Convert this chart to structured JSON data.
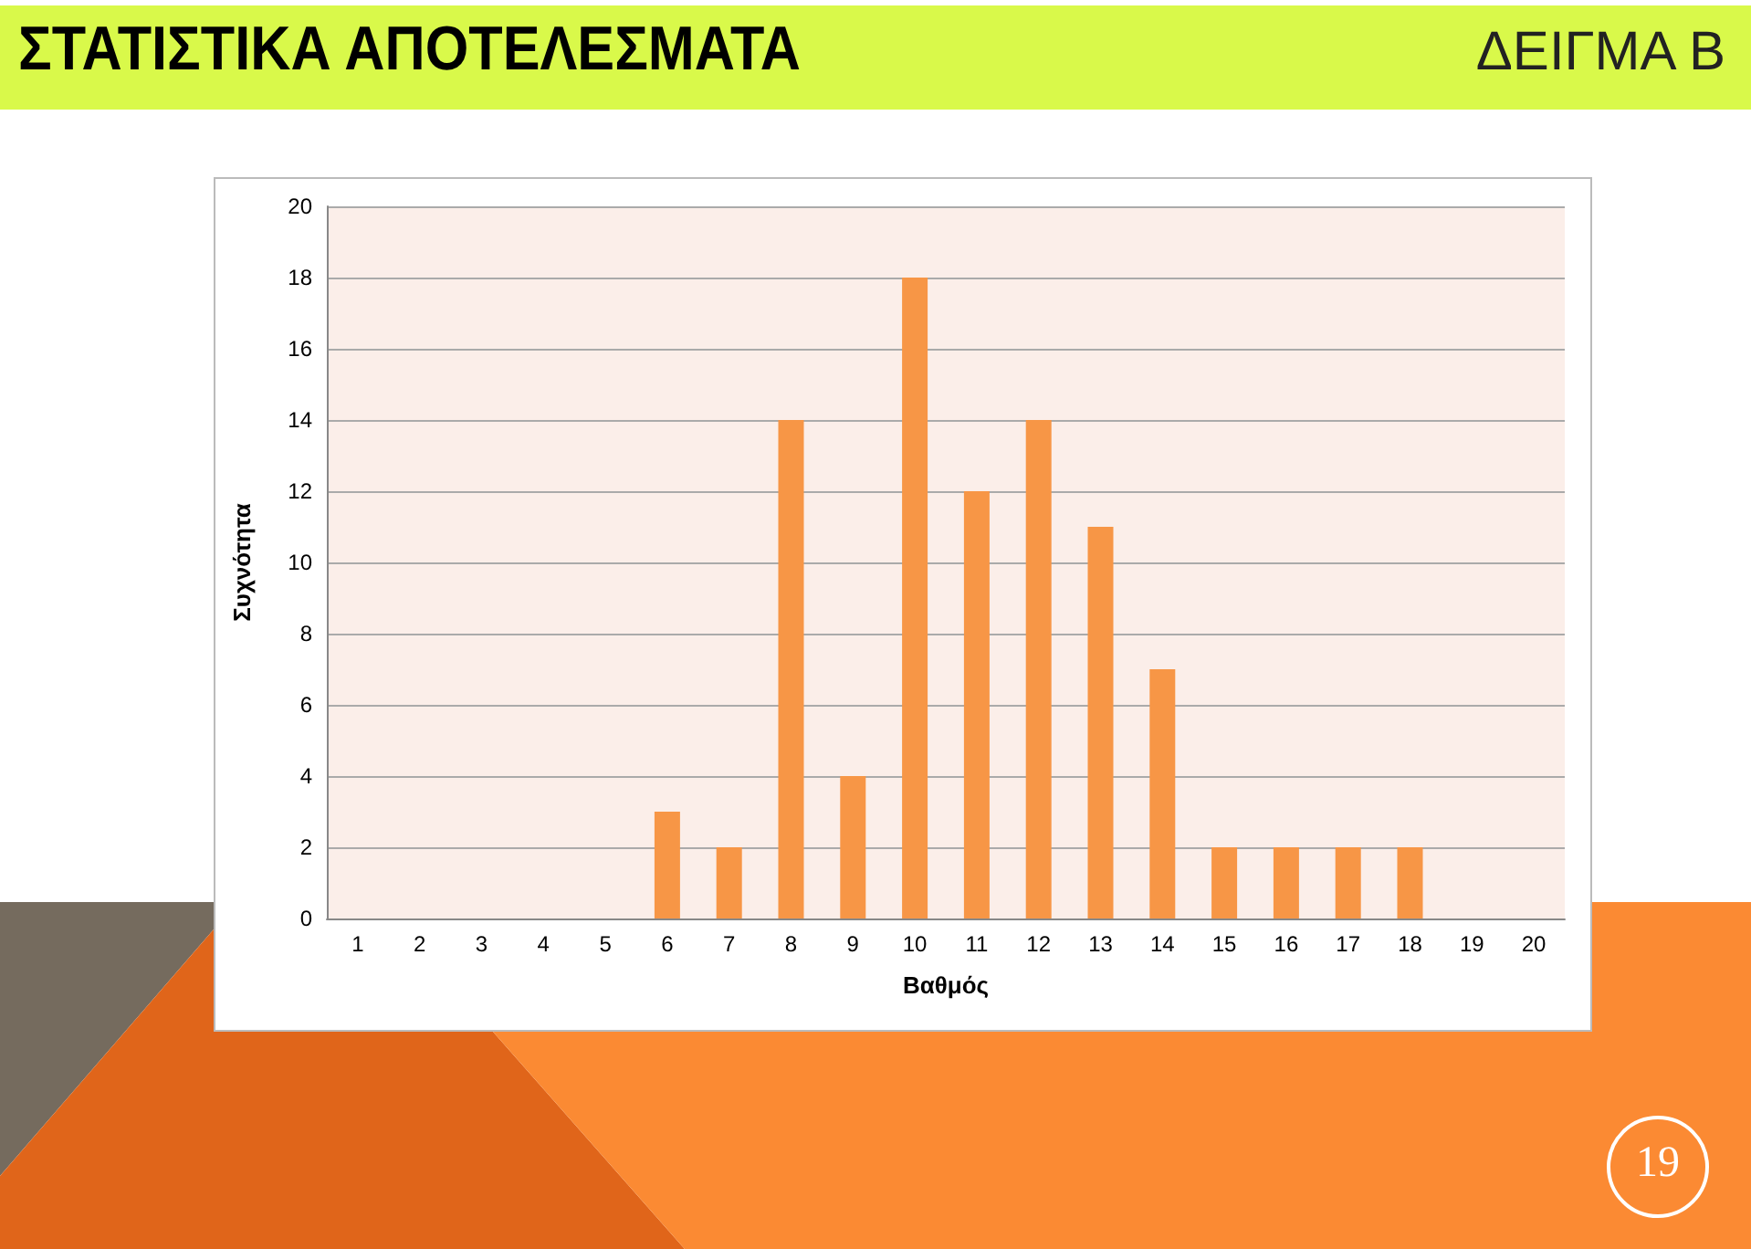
{
  "chart_data": {
    "type": "bar",
    "title": "ΣΤΑΤΙΣΤΙΚΑ ΑΠΟΤΕΛΕΣΜΑΤΑ",
    "subtitle": "ΔΕΙΓΜΑ Β",
    "xlabel": "Βαθμός",
    "ylabel": "Συχνότητα",
    "categories": [
      "1",
      "2",
      "3",
      "4",
      "5",
      "6",
      "7",
      "8",
      "9",
      "10",
      "11",
      "12",
      "13",
      "14",
      "15",
      "16",
      "17",
      "18",
      "19",
      "20"
    ],
    "values": [
      0,
      0,
      0,
      0,
      0,
      3,
      2,
      14,
      4,
      18,
      12,
      14,
      11,
      7,
      2,
      2,
      2,
      2,
      0,
      0
    ],
    "color": "#f79646",
    "ylim": [
      0,
      20
    ],
    "yticks": [
      0,
      2,
      4,
      6,
      8,
      10,
      12,
      14,
      16,
      18,
      20
    ],
    "grid": "y",
    "annotations": [
      "19"
    ]
  }
}
